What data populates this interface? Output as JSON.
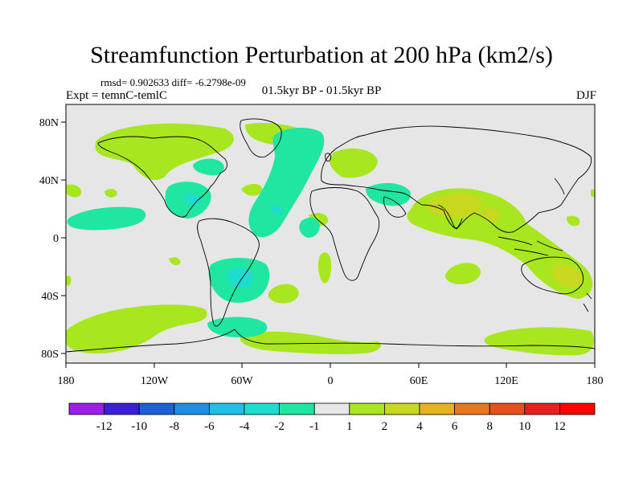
{
  "title": "Streamfunction Perturbation at 200 hPa (km2/s)",
  "stats_line": "rmsd= 0.902633 diff= -6.2798e-09",
  "experiment_label": "Expt = temnC-temlC",
  "period_label": "01.5kyr BP - 01.5kyr BP",
  "season_label": "DJF",
  "lat_ticks": [
    "80N",
    "40N",
    "0",
    "40S",
    "80S"
  ],
  "lon_ticks": [
    "180",
    "120W",
    "60W",
    "0",
    "60E",
    "120E",
    "180"
  ],
  "colorbar": {
    "labels": [
      "-12",
      "-10",
      "-8",
      "-6",
      "-4",
      "-2",
      "-1",
      "1",
      "2",
      "4",
      "6",
      "8",
      "10",
      "12"
    ],
    "colors": [
      "#9b1fe6",
      "#3b1fd8",
      "#1f5fd8",
      "#1f8fe6",
      "#1fbfe6",
      "#1fdcd0",
      "#1fe6a0",
      "#e6e6e6",
      "#a8e61f",
      "#c8d81f",
      "#e6b41f",
      "#e6781f",
      "#e6501f",
      "#e61f1f",
      "#ff0000"
    ]
  },
  "colors": {
    "background": "#e6e6e6",
    "positive_light": "#a8e61f",
    "positive_mid": "#c8d81f",
    "negative_light": "#1fe6a0",
    "negative_mid": "#1fdcd0",
    "coastline": "#000000"
  }
}
